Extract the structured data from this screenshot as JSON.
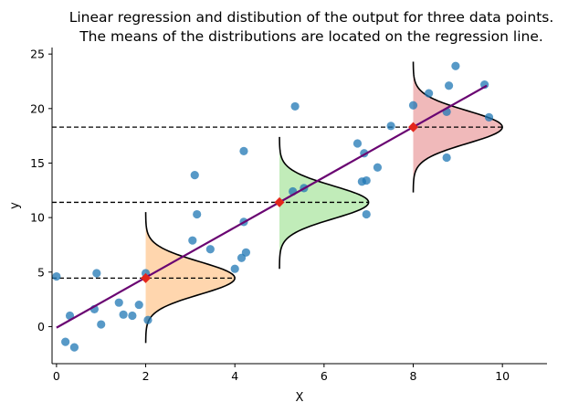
{
  "chart_data": {
    "type": "scatter",
    "title_lines": [
      "Linear regression and distibution of the output for three data points.",
      "The means of the distributions are located on the regression line."
    ],
    "xlabel": "X",
    "ylabel": "y",
    "xlim": [
      -0.1,
      11
    ],
    "ylim": [
      -3.4,
      25.6
    ],
    "x_ticks": [
      0,
      2,
      4,
      6,
      8,
      10
    ],
    "y_ticks": [
      0,
      5,
      10,
      15,
      20,
      25
    ],
    "grid": false,
    "colors": {
      "points": "#1f77b4",
      "regression_line": "#6a0572",
      "markers": "#e3261b",
      "dist_fill": [
        "#ffbb78",
        "#98df8a",
        "#e68a8c"
      ],
      "dist_curve": "#000000",
      "hline": "#000000"
    },
    "points": [
      [
        0.0,
        4.6
      ],
      [
        0.2,
        -1.4
      ],
      [
        0.3,
        1.0
      ],
      [
        0.4,
        -1.9
      ],
      [
        0.85,
        1.6
      ],
      [
        0.9,
        4.9
      ],
      [
        1.0,
        0.2
      ],
      [
        1.4,
        2.2
      ],
      [
        1.5,
        1.1
      ],
      [
        1.7,
        1.0
      ],
      [
        1.85,
        2.0
      ],
      [
        2.0,
        4.9
      ],
      [
        2.05,
        0.6
      ],
      [
        3.05,
        7.9
      ],
      [
        3.1,
        13.9
      ],
      [
        3.15,
        10.3
      ],
      [
        3.45,
        7.1
      ],
      [
        4.0,
        5.3
      ],
      [
        4.15,
        6.3
      ],
      [
        4.2,
        16.1
      ],
      [
        4.2,
        9.6
      ],
      [
        4.25,
        6.8
      ],
      [
        5.3,
        12.4
      ],
      [
        5.35,
        20.2
      ],
      [
        5.55,
        12.7
      ],
      [
        6.75,
        16.8
      ],
      [
        6.85,
        13.3
      ],
      [
        6.9,
        15.9
      ],
      [
        6.95,
        13.4
      ],
      [
        6.95,
        10.3
      ],
      [
        7.2,
        14.6
      ],
      [
        7.5,
        18.4
      ],
      [
        8.0,
        20.3
      ],
      [
        8.35,
        21.4
      ],
      [
        8.75,
        19.7
      ],
      [
        8.75,
        15.5
      ],
      [
        8.8,
        22.1
      ],
      [
        8.95,
        23.9
      ],
      [
        9.6,
        22.2
      ],
      [
        9.7,
        19.2
      ]
    ],
    "regression": {
      "x": [
        0.0,
        9.65
      ],
      "y": [
        -0.1,
        22.1
      ]
    },
    "distributions": [
      {
        "x": 2,
        "mean": 4.45,
        "sigma": 1.5,
        "ymin": -1.5,
        "ymax": 10.5,
        "width": 2.0
      },
      {
        "x": 5,
        "mean": 11.4,
        "sigma": 1.5,
        "ymin": 5.3,
        "ymax": 17.4,
        "width": 2.0
      },
      {
        "x": 8,
        "mean": 18.3,
        "sigma": 1.5,
        "ymin": 12.3,
        "ymax": 24.3,
        "width": 2.0
      }
    ],
    "hlines": [
      4.45,
      11.4,
      18.3
    ]
  }
}
